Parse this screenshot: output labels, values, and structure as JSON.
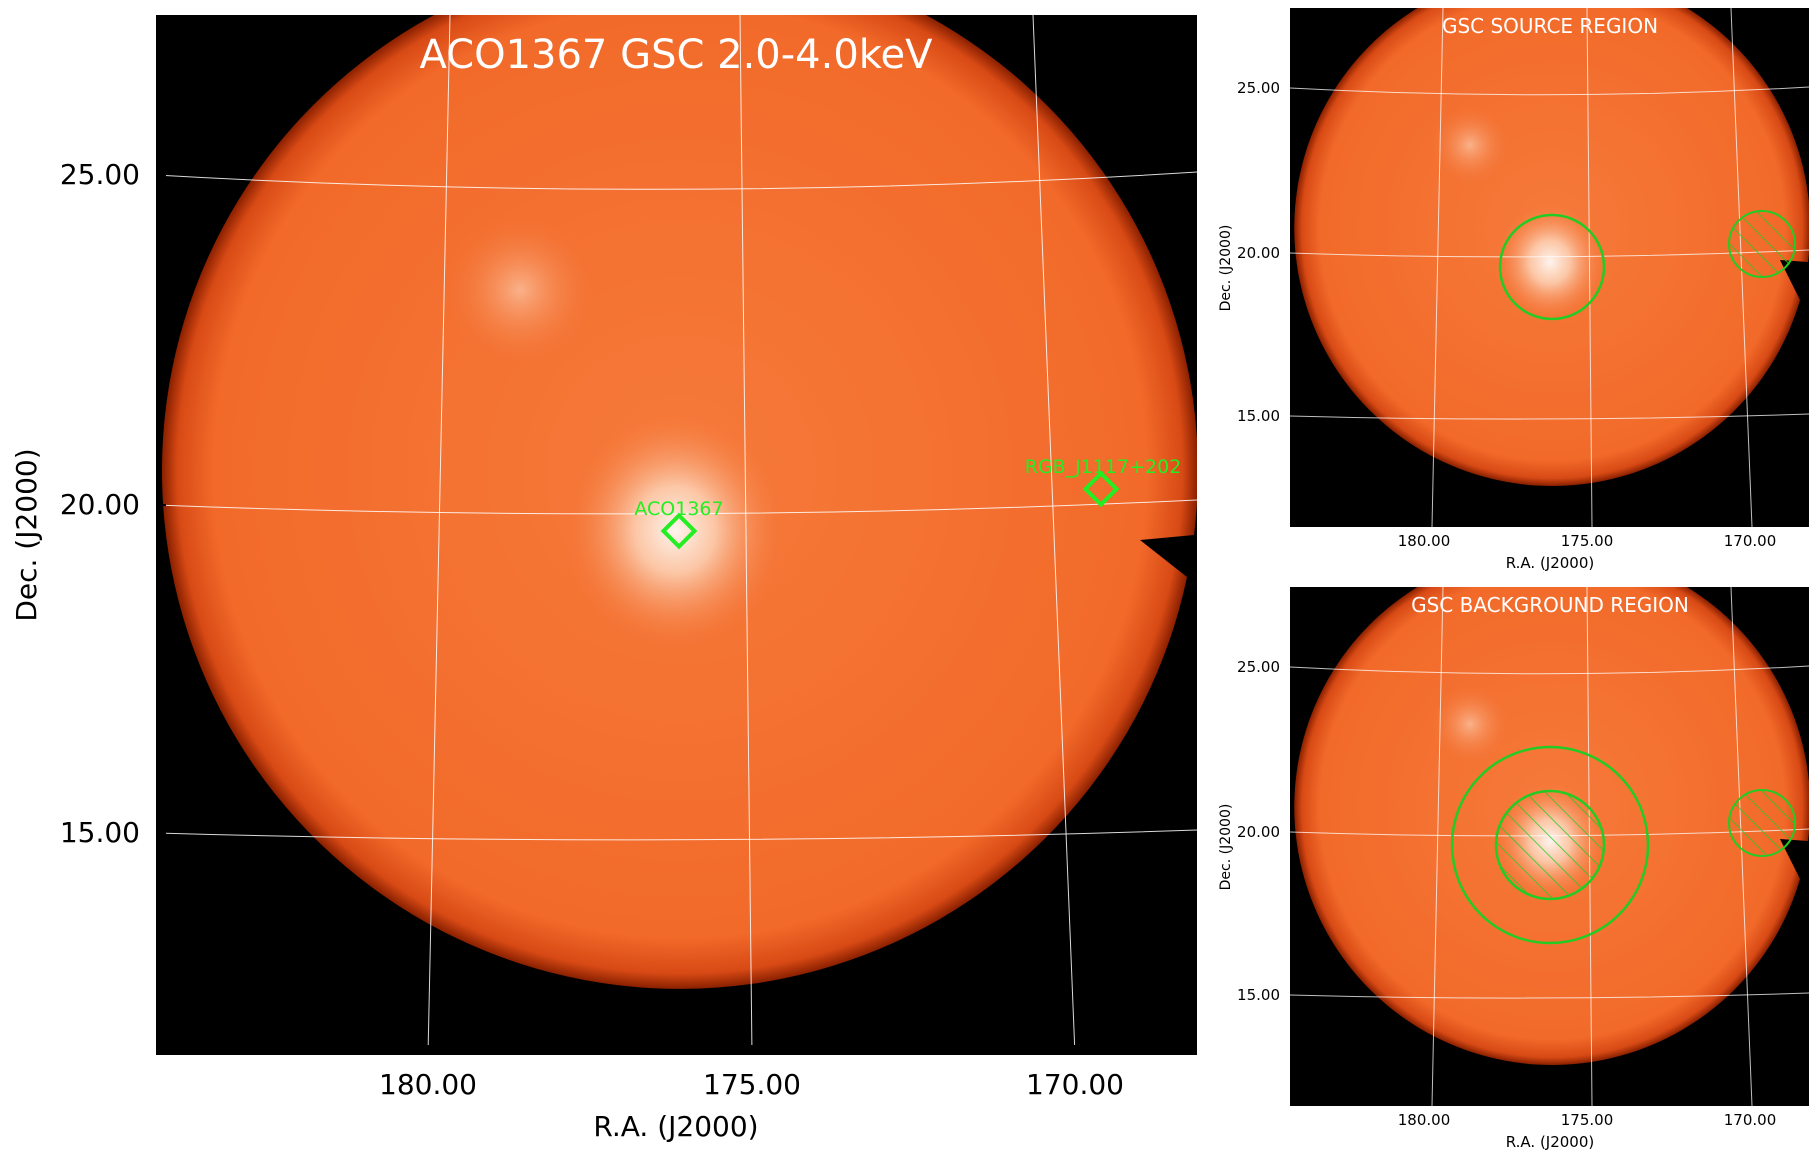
{
  "main_panel": {
    "title": "ACO1367 GSC 2.0-4.0keV",
    "xlabel": "R.A. (J2000)",
    "ylabel": "Dec. (J2000)",
    "x_ticks": [
      "180.00",
      "175.00",
      "170.00"
    ],
    "y_ticks": [
      "25.00",
      "20.00",
      "15.00"
    ],
    "sources": [
      {
        "label": "ACO1367",
        "ra": 176.1,
        "dec": 19.6
      },
      {
        "label": "RGB_J1117+202",
        "ra": 169.5,
        "dec": 20.2
      }
    ]
  },
  "source_panel": {
    "title": "GSC SOURCE REGION",
    "xlabel": "R.A. (J2000)",
    "ylabel": "Dec. (J2000)",
    "x_ticks": [
      "180.00",
      "175.00",
      "170.00"
    ],
    "y_ticks": [
      "25.00",
      "20.00",
      "15.00"
    ]
  },
  "background_panel": {
    "title": "GSC BACKGROUND REGION",
    "xlabel": "R.A. (J2000)",
    "ylabel": "Dec. (J2000)",
    "x_ticks": [
      "180.00",
      "175.00",
      "170.00"
    ],
    "y_ticks": [
      "25.00",
      "20.00",
      "15.00"
    ]
  },
  "colors": {
    "background": "#000000",
    "disk": "#f26a2a",
    "disk_edge": "#b8340a",
    "grid": "#ffffff",
    "region": "#22cc22",
    "marker": "#22ff22"
  }
}
